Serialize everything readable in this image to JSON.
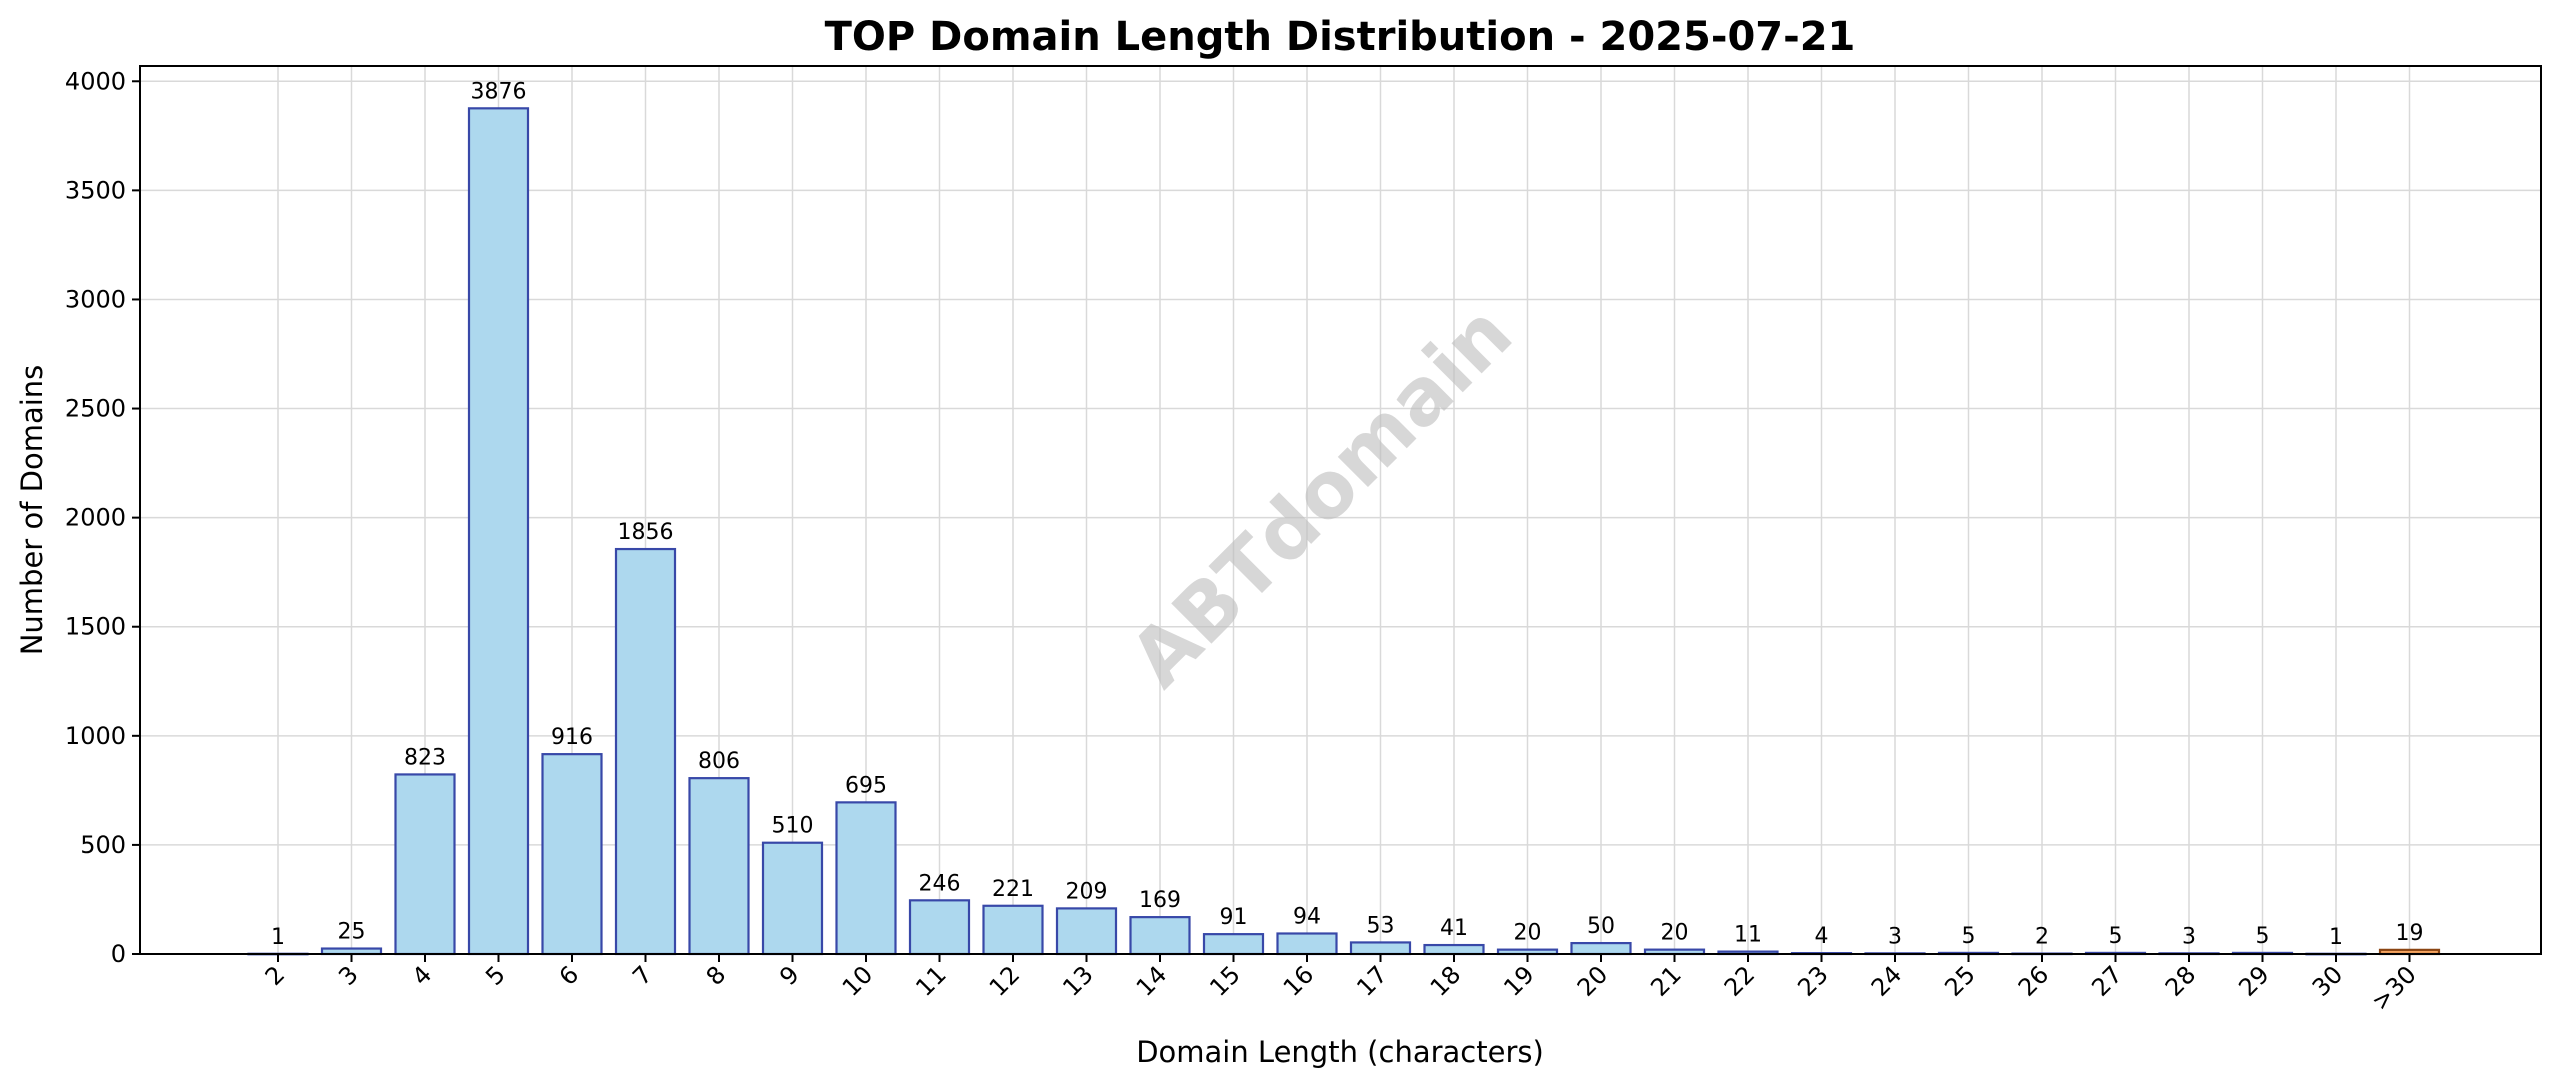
{
  "chart_data": {
    "type": "bar",
    "title": "TOP Domain Length Distribution - 2025-07-21",
    "xlabel": "Domain Length (characters)",
    "ylabel": "Number of Domains",
    "categories": [
      "2",
      "3",
      "4",
      "5",
      "6",
      "7",
      "8",
      "9",
      "10",
      "11",
      "12",
      "13",
      "14",
      "15",
      "16",
      "17",
      "18",
      "19",
      "20",
      "21",
      "22",
      "23",
      "24",
      "25",
      "26",
      "27",
      "28",
      "29",
      "30",
      ">30"
    ],
    "values": [
      1,
      25,
      823,
      3876,
      916,
      1856,
      806,
      510,
      695,
      246,
      221,
      209,
      169,
      91,
      94,
      53,
      41,
      20,
      50,
      20,
      11,
      4,
      3,
      5,
      2,
      5,
      3,
      5,
      1,
      19
    ],
    "ylim": [
      0,
      4070
    ],
    "yticks": [
      0,
      500,
      1000,
      1500,
      2000,
      2500,
      3000,
      3500,
      4000
    ],
    "grid": true,
    "bar_color": "#add8ee",
    "bar_edge_color": "#3848a8",
    "highlight_color": "#f4a460",
    "highlight_edge_color": "#8b4513",
    "highlight_category": ">30",
    "watermark": "ABTdomain"
  }
}
